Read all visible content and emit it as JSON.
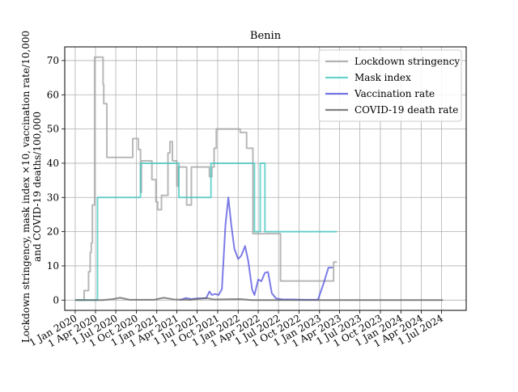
{
  "chart_data": {
    "type": "line",
    "title": "Benin",
    "xlabel": "",
    "ylabel_lines": [
      "Lockdown stringency, mask index ×10, vaccination rate/10,000",
      "and COVID-19 deaths/100,000"
    ],
    "ylim": [
      -3,
      74
    ],
    "yticks": [
      0,
      10,
      20,
      30,
      40,
      50,
      60,
      70
    ],
    "xlim": [
      "2019-11-15",
      "2024-10-20"
    ],
    "xticks": [
      {
        "date": "2020-01-01",
        "label": "1 Jan 2020"
      },
      {
        "date": "2020-04-01",
        "label": "1 Apr 2020"
      },
      {
        "date": "2020-07-01",
        "label": "1 Jul 2020"
      },
      {
        "date": "2020-10-01",
        "label": "1 Oct 2020"
      },
      {
        "date": "2021-01-01",
        "label": "1 Jan 2021"
      },
      {
        "date": "2021-04-01",
        "label": "1 Apr 2021"
      },
      {
        "date": "2021-07-01",
        "label": "1 Jul 2021"
      },
      {
        "date": "2021-10-01",
        "label": "1 Oct 2021"
      },
      {
        "date": "2022-01-01",
        "label": "1 Jan 2022"
      },
      {
        "date": "2022-04-01",
        "label": "1 Apr 2022"
      },
      {
        "date": "2022-07-01",
        "label": "1 Jul 2022"
      },
      {
        "date": "2022-10-01",
        "label": "1 Oct 2022"
      },
      {
        "date": "2023-01-01",
        "label": "1 Jan 2023"
      },
      {
        "date": "2023-04-01",
        "label": "1 Apr 2023"
      },
      {
        "date": "2023-07-01",
        "label": "1 Jul 2023"
      },
      {
        "date": "2023-10-01",
        "label": "1 Oct 2023"
      },
      {
        "date": "2024-01-01",
        "label": "1 Jan 2024"
      },
      {
        "date": "2024-04-01",
        "label": "1 Apr 2024"
      },
      {
        "date": "2024-07-01",
        "label": "1 Jul 2024"
      }
    ],
    "grid": true,
    "legend_position": "top-right",
    "series": [
      {
        "name": "Lockdown stringency",
        "color": "#a0a0a0",
        "style": "step",
        "points": [
          [
            "2020-01-01",
            0
          ],
          [
            "2020-02-10",
            0
          ],
          [
            "2020-02-10",
            2.8
          ],
          [
            "2020-03-01",
            2.8
          ],
          [
            "2020-03-01",
            8.3
          ],
          [
            "2020-03-08",
            8.3
          ],
          [
            "2020-03-08",
            13.9
          ],
          [
            "2020-03-13",
            13.9
          ],
          [
            "2020-03-13",
            16.7
          ],
          [
            "2020-03-18",
            16.7
          ],
          [
            "2020-03-18",
            27.8
          ],
          [
            "2020-03-28",
            27.8
          ],
          [
            "2020-03-28",
            71
          ],
          [
            "2020-05-05",
            71
          ],
          [
            "2020-05-05",
            63
          ],
          [
            "2020-05-08",
            63
          ],
          [
            "2020-05-08",
            57.4
          ],
          [
            "2020-05-22",
            57.4
          ],
          [
            "2020-05-22",
            41.7
          ],
          [
            "2020-09-15",
            41.7
          ],
          [
            "2020-09-15",
            47.2
          ],
          [
            "2020-10-10",
            47.2
          ],
          [
            "2020-10-10",
            44
          ],
          [
            "2020-10-20",
            44
          ],
          [
            "2020-10-20",
            31.5
          ],
          [
            "2020-10-24",
            31.5
          ],
          [
            "2020-10-24",
            40.7
          ],
          [
            "2020-12-10",
            40.7
          ],
          [
            "2020-12-10",
            35.2
          ],
          [
            "2020-12-28",
            35.2
          ],
          [
            "2020-12-28",
            28.7
          ],
          [
            "2021-01-05",
            28.7
          ],
          [
            "2021-01-05",
            26.4
          ],
          [
            "2021-01-22",
            26.4
          ],
          [
            "2021-01-22",
            30.6
          ],
          [
            "2021-02-20",
            30.6
          ],
          [
            "2021-02-20",
            43
          ],
          [
            "2021-03-01",
            43
          ],
          [
            "2021-03-01",
            46.3
          ],
          [
            "2021-03-12",
            46.3
          ],
          [
            "2021-03-12",
            40.7
          ],
          [
            "2021-04-01",
            40.7
          ],
          [
            "2021-04-01",
            33.3
          ],
          [
            "2021-04-08",
            33.3
          ],
          [
            "2021-04-08",
            38.9
          ],
          [
            "2021-05-15",
            38.9
          ],
          [
            "2021-05-15",
            27.8
          ],
          [
            "2021-06-05",
            27.8
          ],
          [
            "2021-06-05",
            38.9
          ],
          [
            "2021-08-25",
            38.9
          ],
          [
            "2021-08-25",
            36.1
          ],
          [
            "2021-09-05",
            36.1
          ],
          [
            "2021-09-05",
            38.9
          ],
          [
            "2021-09-15",
            38.9
          ],
          [
            "2021-09-15",
            44.4
          ],
          [
            "2021-09-25",
            44.4
          ],
          [
            "2021-09-25",
            50
          ],
          [
            "2022-01-10",
            50
          ],
          [
            "2022-01-10",
            49
          ],
          [
            "2022-02-08",
            49
          ],
          [
            "2022-02-08",
            44.4
          ],
          [
            "2022-03-08",
            44.4
          ],
          [
            "2022-03-08",
            19.4
          ],
          [
            "2022-07-10",
            19.4
          ],
          [
            "2022-07-10",
            5.6
          ],
          [
            "2023-03-05",
            5.6
          ],
          [
            "2023-03-05",
            11.1
          ],
          [
            "2023-03-20",
            11.1
          ]
        ]
      },
      {
        "name": "Mask index",
        "color": "#40c8c0",
        "style": "step",
        "points": [
          [
            "2020-01-01",
            0
          ],
          [
            "2020-04-10",
            0
          ],
          [
            "2020-04-10",
            30
          ],
          [
            "2020-10-20",
            30
          ],
          [
            "2020-10-20",
            40
          ],
          [
            "2021-04-10",
            40
          ],
          [
            "2021-04-10",
            30
          ],
          [
            "2021-09-01",
            30
          ],
          [
            "2021-09-01",
            40
          ],
          [
            "2022-03-15",
            40
          ],
          [
            "2022-03-15",
            20
          ],
          [
            "2022-04-10",
            20
          ],
          [
            "2022-04-10",
            40
          ],
          [
            "2022-05-01",
            40
          ],
          [
            "2022-05-01",
            20
          ],
          [
            "2023-03-20",
            20
          ]
        ]
      },
      {
        "name": "Vaccination rate",
        "color": "#5050e0",
        "style": "line",
        "points": [
          [
            "2021-04-15",
            0
          ],
          [
            "2021-05-10",
            0.6
          ],
          [
            "2021-06-05",
            0.3
          ],
          [
            "2021-07-05",
            0.5
          ],
          [
            "2021-08-10",
            0.5
          ],
          [
            "2021-08-25",
            2.5
          ],
          [
            "2021-09-05",
            1.5
          ],
          [
            "2021-09-20",
            1.8
          ],
          [
            "2021-10-05",
            1.5
          ],
          [
            "2021-10-20",
            3.2
          ],
          [
            "2021-11-05",
            22
          ],
          [
            "2021-11-18",
            30
          ],
          [
            "2021-12-01",
            22
          ],
          [
            "2021-12-15",
            15
          ],
          [
            "2022-01-01",
            12
          ],
          [
            "2022-01-15",
            13
          ],
          [
            "2022-02-01",
            15.8
          ],
          [
            "2022-02-15",
            11.5
          ],
          [
            "2022-03-05",
            3
          ],
          [
            "2022-03-15",
            1.5
          ],
          [
            "2022-04-01",
            6
          ],
          [
            "2022-04-15",
            5.5
          ],
          [
            "2022-05-01",
            8
          ],
          [
            "2022-05-15",
            8.2
          ],
          [
            "2022-06-01",
            2
          ],
          [
            "2022-06-20",
            0.5
          ],
          [
            "2022-07-20",
            0.2
          ],
          [
            "2022-09-01",
            0.2
          ],
          [
            "2022-10-20",
            0.1
          ],
          [
            "2022-12-25",
            0.1
          ],
          [
            "2023-01-20",
            5
          ],
          [
            "2023-02-10",
            9.5
          ],
          [
            "2023-03-01",
            9.5
          ]
        ]
      },
      {
        "name": "COVID-19 death rate",
        "color": "#606060",
        "style": "line",
        "points": [
          [
            "2020-01-01",
            0
          ],
          [
            "2020-05-01",
            0
          ],
          [
            "2020-06-20",
            0.3
          ],
          [
            "2020-07-20",
            0.7
          ],
          [
            "2020-09-01",
            0.1
          ],
          [
            "2020-12-20",
            0.1
          ],
          [
            "2021-02-01",
            0.7
          ],
          [
            "2021-03-20",
            0.2
          ],
          [
            "2021-06-01",
            0.1
          ],
          [
            "2021-08-10",
            0.6
          ],
          [
            "2021-09-15",
            0.2
          ],
          [
            "2022-01-10",
            0.3
          ],
          [
            "2022-03-01",
            0
          ],
          [
            "2024-07-08",
            0
          ]
        ]
      }
    ]
  }
}
